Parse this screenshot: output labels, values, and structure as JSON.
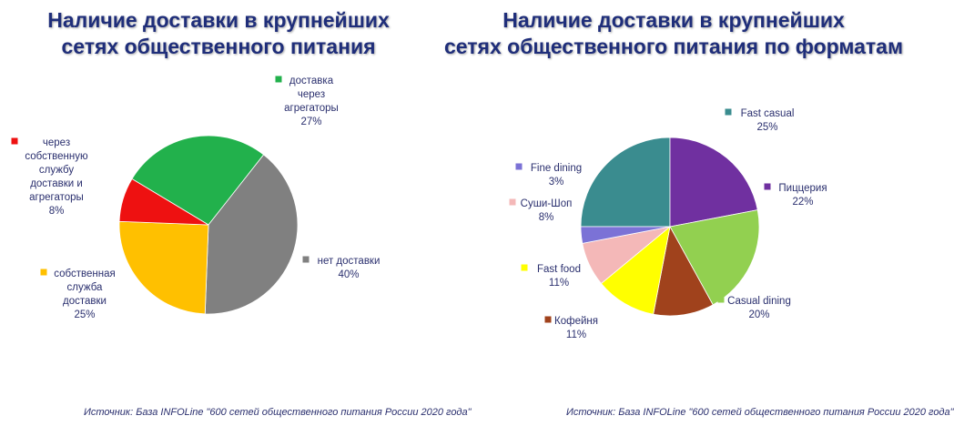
{
  "left": {
    "title_line1": "Наличие доставки в крупнейших",
    "title_line2": "сетях общественного питания",
    "source": "Источник: База INFOLine \"600 сетей общественного питания России 2020 года\""
  },
  "right": {
    "title_line1": "Наличие доставки в крупнейших",
    "title_line2": "сетях общественного питания по форматам",
    "source": "Источник: База INFOLine \"600 сетей общественного питания России 2020 года\""
  },
  "chart_data": [
    {
      "type": "pie",
      "title": "Наличие доставки в крупнейших сетях общественного питания",
      "slices": [
        {
          "label": "доставка через агрегаторы",
          "lines": [
            "доставка",
            "через",
            "агрегаторы"
          ],
          "value": 27,
          "pct": "27%",
          "color": "#22b14c"
        },
        {
          "label": "нет доставки",
          "lines": [
            "нет доставки"
          ],
          "value": 40,
          "pct": "40%",
          "color": "#808080"
        },
        {
          "label": "собственная служба доставки",
          "lines": [
            "собственная",
            "служба",
            "доставки"
          ],
          "value": 25,
          "pct": "25%",
          "color": "#ffc000"
        },
        {
          "label": "через собственную службу доставки и агрегаторы",
          "lines": [
            "через",
            "собственную",
            "службу",
            "доставки и",
            "агрегаторы"
          ],
          "value": 8,
          "pct": "8%",
          "color": "#ee1111"
        }
      ]
    },
    {
      "type": "pie",
      "title": "Наличие доставки в крупнейших сетях общественного питания по форматам",
      "slices": [
        {
          "label": "Fast casual",
          "lines": [
            "Fast casual"
          ],
          "value": 25,
          "pct": "25%",
          "color": "#3a8c8f"
        },
        {
          "label": "Пиццерия",
          "lines": [
            "Пиццерия"
          ],
          "value": 22,
          "pct": "22%",
          "color": "#7030a0"
        },
        {
          "label": "Casual dining",
          "lines": [
            "Casual dining"
          ],
          "value": 20,
          "pct": "20%",
          "color": "#92d050"
        },
        {
          "label": "Кофейня",
          "lines": [
            "Кофейня"
          ],
          "value": 11,
          "pct": "11%",
          "color": "#a0421c"
        },
        {
          "label": "Fast food",
          "lines": [
            "Fast food"
          ],
          "value": 11,
          "pct": "11%",
          "color": "#ffff00"
        },
        {
          "label": "Суши-Шоп",
          "lines": [
            "Суши-Шоп"
          ],
          "value": 8,
          "pct": "8%",
          "color": "#f4b8b8"
        },
        {
          "label": "Fine dining",
          "lines": [
            "Fine dining"
          ],
          "value": 3,
          "pct": "3%",
          "color": "#7b72d6"
        }
      ]
    }
  ]
}
